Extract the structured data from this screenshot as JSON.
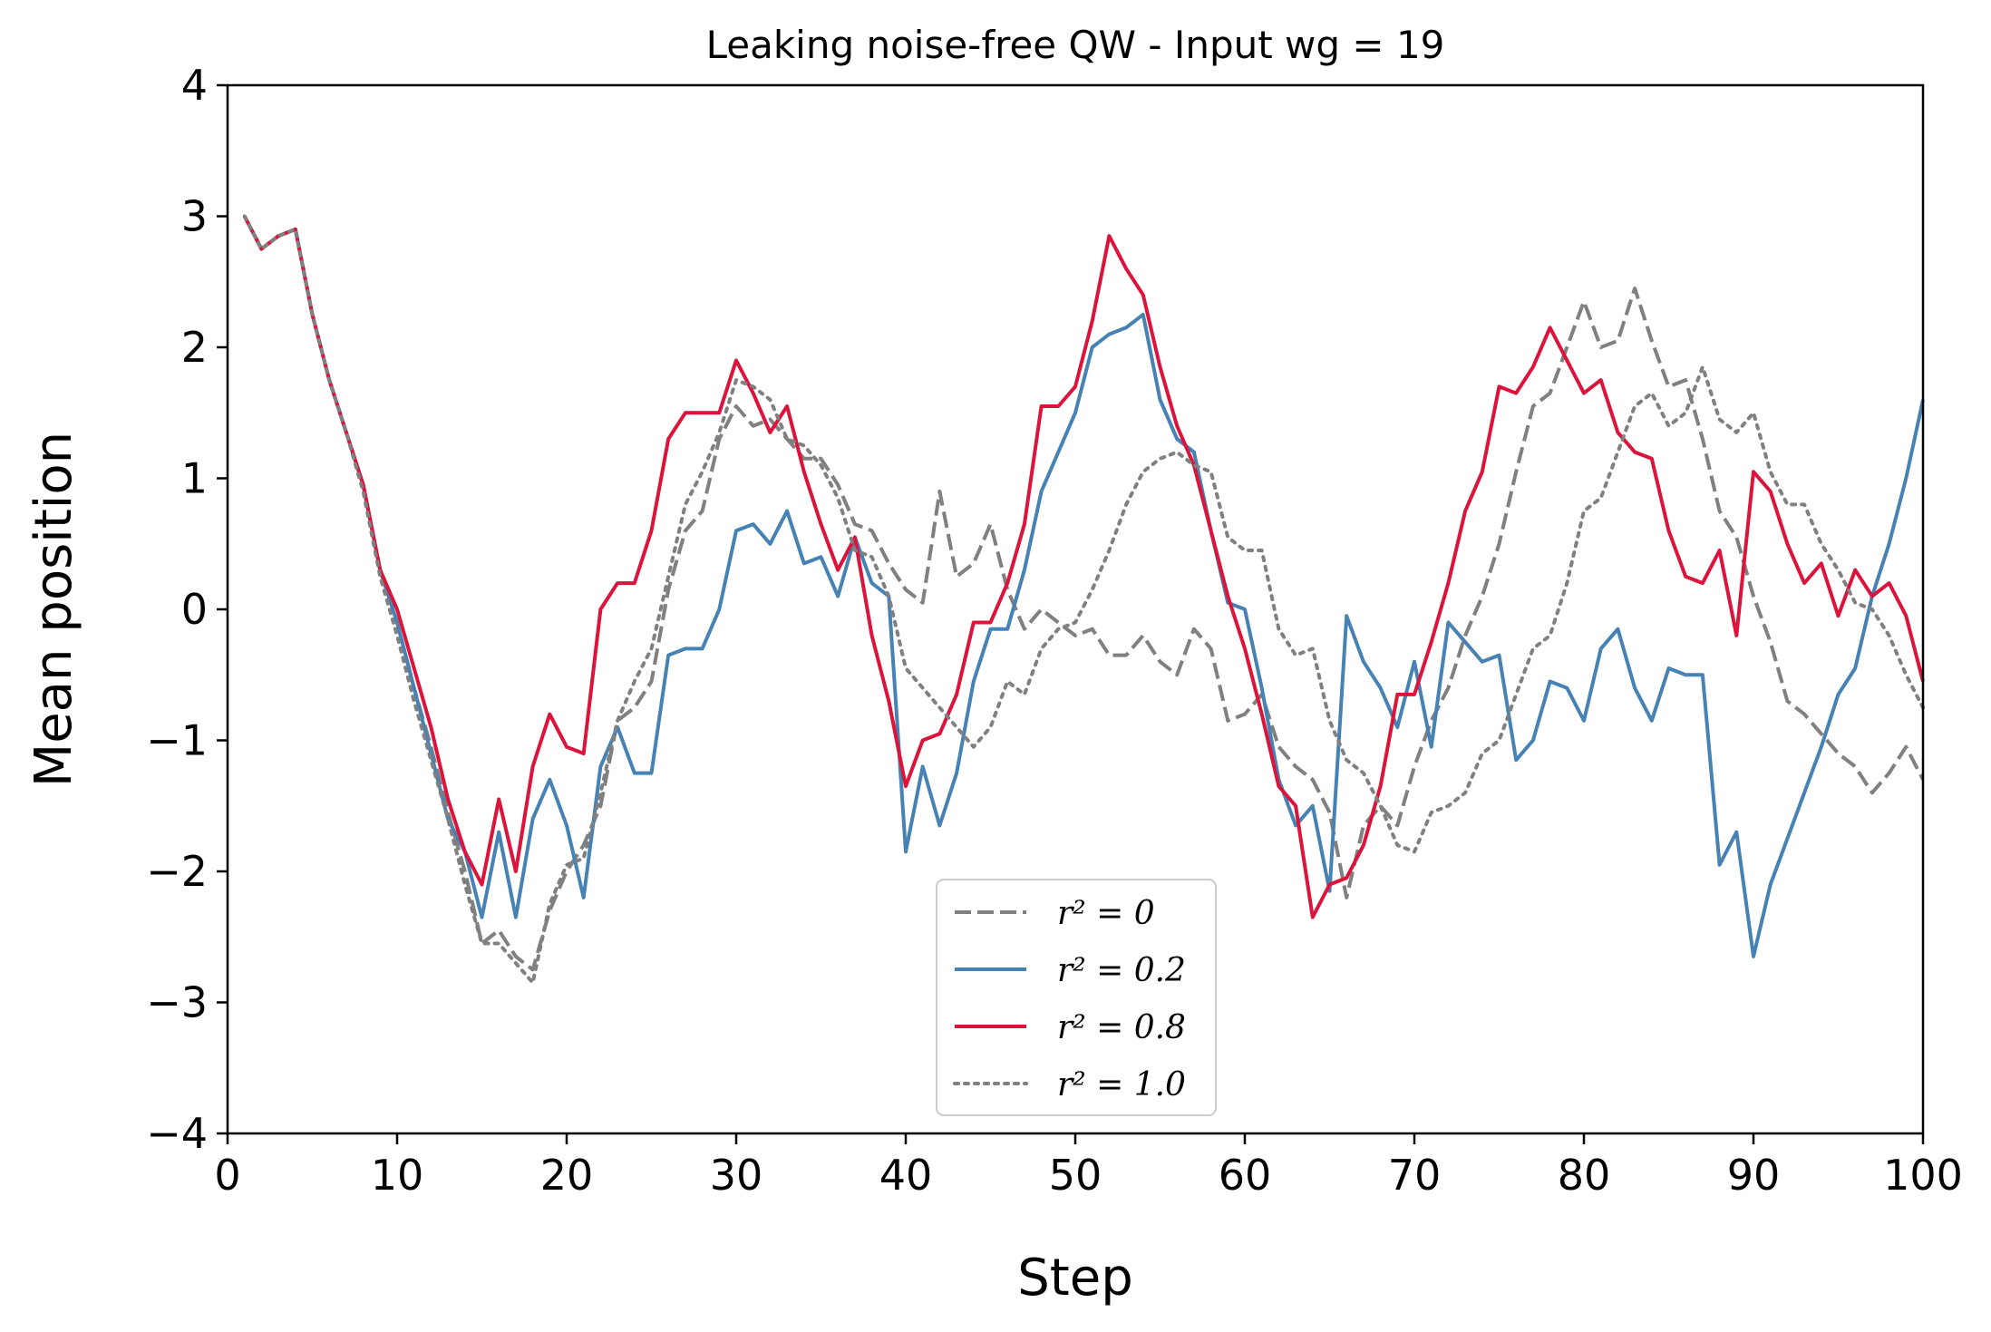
{
  "chart_data": {
    "type": "line",
    "title": "Leaking noise-free QW - Input wg = 19",
    "xlabel": "Step",
    "ylabel": "Mean position",
    "xlim": [
      0,
      100
    ],
    "ylim": [
      -4,
      4
    ],
    "xticks": [
      0,
      10,
      20,
      30,
      40,
      50,
      60,
      70,
      80,
      90,
      100
    ],
    "yticks": [
      -4,
      -3,
      -2,
      -1,
      0,
      1,
      2,
      3,
      4
    ],
    "xtick_labels": [
      "0",
      "10",
      "20",
      "30",
      "40",
      "50",
      "60",
      "70",
      "80",
      "90",
      "100"
    ],
    "ytick_labels": [
      "−4",
      "−3",
      "−2",
      "−1",
      "0",
      "1",
      "2",
      "3",
      "4"
    ],
    "grid": false,
    "legend_position": "bottom-center",
    "x": [
      1,
      2,
      3,
      4,
      5,
      6,
      7,
      8,
      9,
      10,
      11,
      12,
      13,
      14,
      15,
      16,
      17,
      18,
      19,
      20,
      21,
      22,
      23,
      24,
      25,
      26,
      27,
      28,
      29,
      30,
      31,
      32,
      33,
      34,
      35,
      36,
      37,
      38,
      39,
      40,
      41,
      42,
      43,
      44,
      45,
      46,
      47,
      48,
      49,
      50,
      51,
      52,
      53,
      54,
      55,
      56,
      57,
      58,
      59,
      60,
      61,
      62,
      63,
      64,
      65,
      66,
      67,
      68,
      69,
      70,
      71,
      72,
      73,
      74,
      75,
      76,
      77,
      78,
      79,
      80,
      81,
      82,
      83,
      84,
      85,
      86,
      87,
      88,
      89,
      90,
      91,
      92,
      93,
      94,
      95,
      96,
      97,
      98,
      99,
      100
    ],
    "series": [
      {
        "name": "r² = 0",
        "legend_label": "r² = 0",
        "color": "#808080",
        "dash": "dashed",
        "values": [
          3.0,
          2.75,
          2.85,
          2.9,
          2.25,
          1.75,
          1.35,
          0.95,
          0.3,
          -0.1,
          -0.6,
          -1.05,
          -1.55,
          -2.0,
          -2.55,
          -2.45,
          -2.65,
          -2.75,
          -2.3,
          -2.0,
          -1.8,
          -1.5,
          -0.85,
          -0.75,
          -0.55,
          0.15,
          0.6,
          0.75,
          1.3,
          1.55,
          1.4,
          1.45,
          1.3,
          1.15,
          1.15,
          0.95,
          0.65,
          0.6,
          0.35,
          0.15,
          0.05,
          0.9,
          0.25,
          0.35,
          0.65,
          0.15,
          -0.15,
          0.0,
          -0.1,
          -0.2,
          -0.15,
          -0.35,
          -0.35,
          -0.2,
          -0.4,
          -0.5,
          -0.15,
          -0.3,
          -0.85,
          -0.8,
          -0.65,
          -1.05,
          -1.2,
          -1.3,
          -1.55,
          -2.2,
          -1.65,
          -1.5,
          -1.65,
          -1.2,
          -0.85,
          -0.6,
          -0.2,
          0.1,
          0.5,
          1.05,
          1.55,
          1.65,
          2.0,
          2.35,
          2.0,
          2.05,
          2.45,
          2.05,
          1.7,
          1.75,
          1.3,
          0.75,
          0.55,
          0.1,
          -0.25,
          -0.7,
          -0.8,
          -0.95,
          -1.1,
          -1.2,
          -1.4,
          -1.25,
          -1.05,
          -1.3
        ]
      },
      {
        "name": "r² = 0.2",
        "legend_label": "r² = 0.2",
        "color": "#4682b4",
        "dash": "solid",
        "values": [
          3.0,
          2.75,
          2.85,
          2.9,
          2.25,
          1.75,
          1.35,
          0.95,
          0.3,
          -0.1,
          -0.6,
          -1.1,
          -1.6,
          -1.85,
          -2.35,
          -1.7,
          -2.35,
          -1.6,
          -1.3,
          -1.65,
          -2.2,
          -1.2,
          -0.9,
          -1.25,
          -1.25,
          -0.35,
          -0.3,
          -0.3,
          0.0,
          0.6,
          0.65,
          0.5,
          0.75,
          0.35,
          0.4,
          0.1,
          0.55,
          0.2,
          0.1,
          -1.85,
          -1.2,
          -1.65,
          -1.25,
          -0.55,
          -0.15,
          -0.15,
          0.3,
          0.9,
          1.2,
          1.5,
          2.0,
          2.1,
          2.15,
          2.25,
          1.6,
          1.3,
          1.2,
          0.6,
          0.05,
          0.0,
          -0.6,
          -1.3,
          -1.65,
          -1.5,
          -2.15,
          -0.05,
          -0.4,
          -0.6,
          -0.9,
          -0.4,
          -1.05,
          -0.1,
          -0.25,
          -0.4,
          -0.35,
          -1.15,
          -1.0,
          -0.55,
          -0.6,
          -0.85,
          -0.3,
          -0.15,
          -0.6,
          -0.85,
          -0.45,
          -0.5,
          -0.5,
          -1.95,
          -1.7,
          -2.65,
          -2.1,
          -1.75,
          -1.4,
          -1.05,
          -0.65,
          -0.45,
          0.1,
          0.5,
          1.0,
          1.6
        ]
      },
      {
        "name": "r² = 0.8",
        "legend_label": "r² = 0.8",
        "color": "#dc143c",
        "dash": "solid",
        "values": [
          3.0,
          2.75,
          2.85,
          2.9,
          2.25,
          1.75,
          1.35,
          0.95,
          0.3,
          0.0,
          -0.45,
          -0.9,
          -1.45,
          -1.85,
          -2.1,
          -1.45,
          -2.0,
          -1.2,
          -0.8,
          -1.05,
          -1.1,
          0.0,
          0.2,
          0.2,
          0.6,
          1.3,
          1.5,
          1.5,
          1.5,
          1.9,
          1.65,
          1.35,
          1.55,
          1.05,
          0.65,
          0.3,
          0.55,
          -0.2,
          -0.7,
          -1.35,
          -1.0,
          -0.95,
          -0.65,
          -0.1,
          -0.1,
          0.2,
          0.65,
          1.55,
          1.55,
          1.7,
          2.2,
          2.85,
          2.6,
          2.4,
          1.85,
          1.4,
          1.1,
          0.6,
          0.1,
          -0.3,
          -0.8,
          -1.35,
          -1.5,
          -2.35,
          -2.1,
          -2.05,
          -1.8,
          -1.35,
          -0.65,
          -0.65,
          -0.25,
          0.2,
          0.75,
          1.05,
          1.7,
          1.65,
          1.85,
          2.15,
          1.9,
          1.65,
          1.75,
          1.35,
          1.2,
          1.15,
          0.6,
          0.25,
          0.2,
          0.45,
          -0.2,
          1.05,
          0.9,
          0.5,
          0.2,
          0.35,
          -0.05,
          0.3,
          0.1,
          0.2,
          -0.05,
          -0.55
        ]
      },
      {
        "name": "r² = 1.0",
        "legend_label": "r² = 1.0",
        "color": "#808080",
        "dash": "dotted",
        "values": [
          3.0,
          2.75,
          2.85,
          2.9,
          2.25,
          1.75,
          1.35,
          0.9,
          0.25,
          -0.2,
          -0.7,
          -1.15,
          -1.6,
          -2.1,
          -2.55,
          -2.55,
          -2.7,
          -2.85,
          -2.25,
          -1.95,
          -1.9,
          -1.4,
          -0.85,
          -0.55,
          -0.3,
          0.25,
          0.8,
          1.05,
          1.35,
          1.75,
          1.7,
          1.6,
          1.3,
          1.25,
          1.1,
          0.85,
          0.45,
          0.4,
          0.1,
          -0.45,
          -0.6,
          -0.75,
          -0.9,
          -1.05,
          -0.9,
          -0.55,
          -0.65,
          -0.3,
          -0.15,
          -0.1,
          0.15,
          0.45,
          0.8,
          1.05,
          1.15,
          1.2,
          1.1,
          1.05,
          0.55,
          0.45,
          0.45,
          -0.15,
          -0.35,
          -0.3,
          -0.85,
          -1.15,
          -1.25,
          -1.5,
          -1.8,
          -1.85,
          -1.55,
          -1.5,
          -1.4,
          -1.1,
          -1.0,
          -0.65,
          -0.3,
          -0.2,
          0.2,
          0.75,
          0.85,
          1.2,
          1.55,
          1.65,
          1.4,
          1.5,
          1.85,
          1.45,
          1.35,
          1.5,
          1.05,
          0.8,
          0.8,
          0.5,
          0.3,
          0.05,
          0.0,
          -0.2,
          -0.5,
          -0.75
        ]
      }
    ]
  }
}
